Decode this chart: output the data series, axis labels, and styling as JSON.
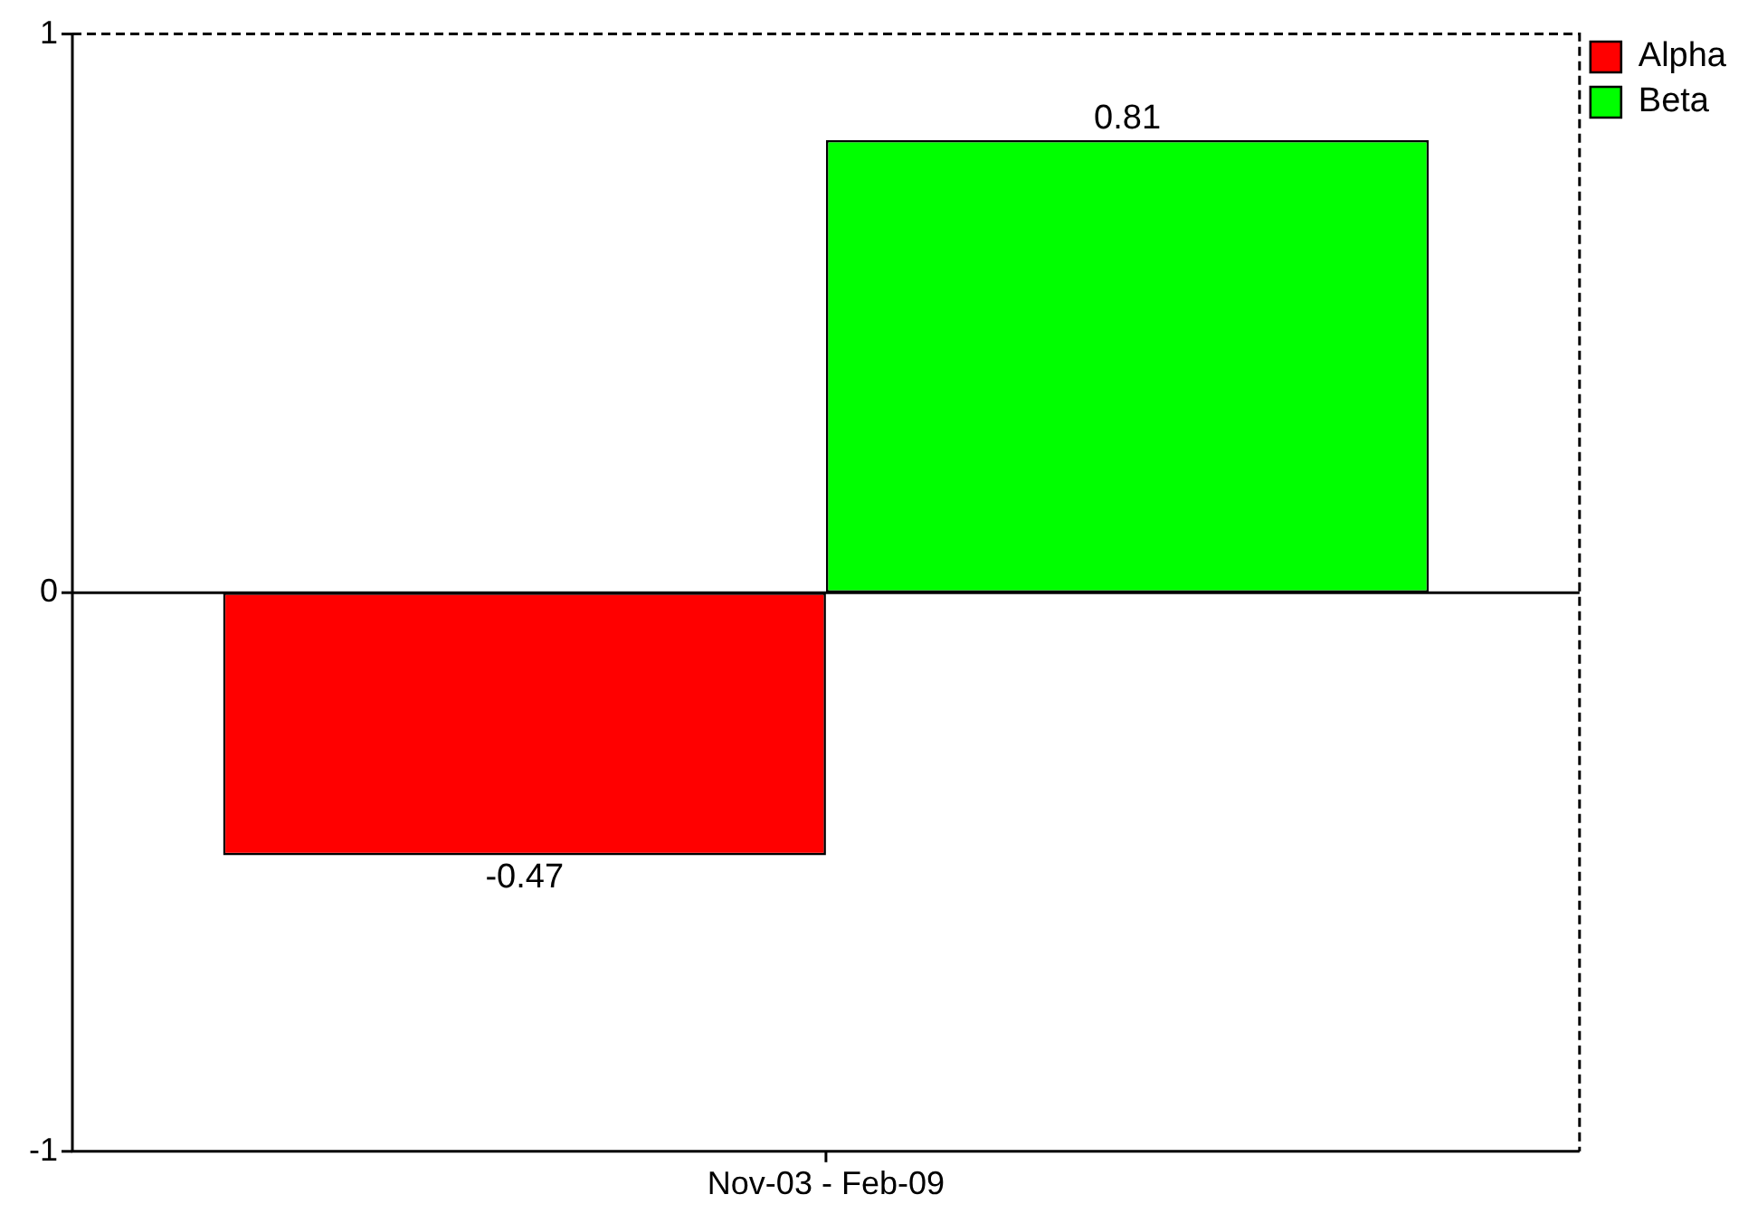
{
  "chart_data": {
    "type": "bar",
    "categories": [
      "Nov-03 - Feb-09"
    ],
    "series": [
      {
        "name": "Alpha",
        "color": "#ff0000",
        "values": [
          -0.47
        ]
      },
      {
        "name": "Beta",
        "color": "#00ff00",
        "values": [
          0.81
        ]
      }
    ],
    "ylim": [
      -1,
      1
    ],
    "yticks": [
      -1,
      0,
      1
    ],
    "data_labels": true,
    "legend": "top right"
  }
}
